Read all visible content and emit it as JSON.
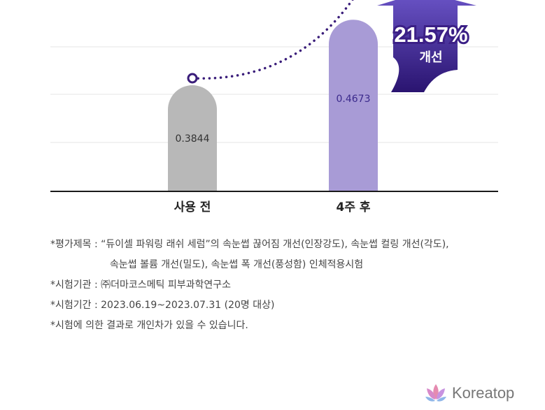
{
  "chart_data": {
    "type": "bar",
    "categories": [
      "사용 전",
      "4주 후"
    ],
    "values": [
      0.3844,
      0.4673
    ],
    "value_labels": [
      "0.3844",
      "0.4673"
    ],
    "grid": true,
    "trend_line": "dotted",
    "callout": {
      "percent": "21.57%",
      "label": "개선"
    }
  },
  "colors": {
    "before_bar": "#b8b8b8",
    "after_bar": "#a89bd6",
    "accent": "#3b1f86",
    "dots": "#3a1d7a",
    "baseline": "#1a1a1a",
    "grid": "#e6e6e6"
  },
  "notes": [
    "*평가제목 : “듀이셀 파워링 래쉬 세럼”의 속눈썹 끊어짐 개선(인장강도), 속눈썹 컬링 개선(각도),",
    "속눈썹 볼륨 개선(밀도), 속눈썹 폭 개선(풍성함) 인체적용시험",
    "*시험기관 : ㈜더마코스메틱 피부과학연구소",
    "*시험기간 : 2023.06.19~2023.07.31 (20명 대상)",
    "*시험에 의한 결과로 개인차가 있을 수 있습니다."
  ],
  "watermark": {
    "text": "Koreatop",
    "icon": "lotus-icon"
  }
}
